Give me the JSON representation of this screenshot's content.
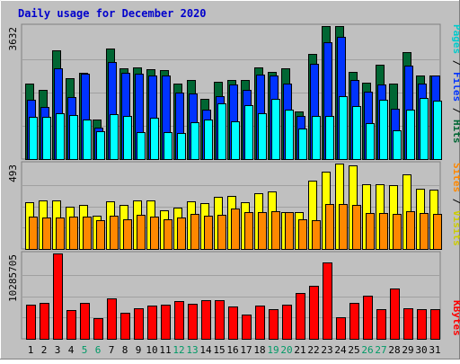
{
  "title": "Daily usage for December 2020",
  "colors": {
    "background": "#c0c0c0",
    "title": "#0000cc",
    "hits": "#006633",
    "files": "#0033ff",
    "pages": "#00ffff",
    "visits": "#ffff00",
    "sites": "#ff8800",
    "kbytes": "#ff0000",
    "weekend_day": "#009966",
    "weekday": "#000000"
  },
  "legends": {
    "top": [
      {
        "text": "Pages",
        "color": "#00cccc"
      },
      {
        "text": " / ",
        "color": "#000000"
      },
      {
        "text": "Files",
        "color": "#0033ff"
      },
      {
        "text": " / ",
        "color": "#000000"
      },
      {
        "text": "Hits",
        "color": "#006633"
      }
    ],
    "mid": [
      {
        "text": "Sites",
        "color": "#ff8800"
      },
      {
        "text": " / ",
        "color": "#000000"
      },
      {
        "text": "Visits",
        "color": "#cccc00"
      }
    ],
    "bottom": [
      {
        "text": "KBytes",
        "color": "#ff0000"
      }
    ]
  },
  "chart_data": [
    {
      "type": "bar",
      "name": "Hits / Files / Pages",
      "ymax_label": "3632",
      "ylim": [
        0,
        3632
      ],
      "x": [
        "1",
        "2",
        "3",
        "4",
        "5",
        "6",
        "7",
        "8",
        "9",
        "10",
        "11",
        "12",
        "13",
        "14",
        "15",
        "16",
        "17",
        "18",
        "19",
        "20",
        "21",
        "22",
        "23",
        "24",
        "25",
        "26",
        "27",
        "28",
        "29",
        "30",
        "31"
      ],
      "weekend_days": [
        "5",
        "6",
        "12",
        "13",
        "19",
        "20",
        "26",
        "27"
      ],
      "series": [
        {
          "name": "Hits",
          "values": [
            2050,
            1900,
            2970,
            2210,
            2350,
            1090,
            3020,
            2480,
            2510,
            2460,
            2420,
            2050,
            2150,
            1650,
            2110,
            2150,
            2170,
            2500,
            2370,
            2480,
            1310,
            2870,
            3630,
            3630,
            2380,
            2080,
            2570,
            2070,
            2930,
            2290,
            2280
          ]
        },
        {
          "name": "Files",
          "values": [
            1620,
            1420,
            2470,
            1700,
            2320,
            850,
            2660,
            2350,
            2340,
            2270,
            2280,
            1810,
            1800,
            1360,
            1710,
            2030,
            1900,
            2310,
            2270,
            2070,
            1180,
            2610,
            3190,
            3330,
            2160,
            1850,
            2030,
            1370,
            2540,
            2050,
            2270
          ]
        },
        {
          "name": "Pages",
          "values": [
            1150,
            1160,
            1240,
            1200,
            1070,
            750,
            1230,
            1170,
            740,
            1140,
            740,
            710,
            1010,
            1070,
            1530,
            1040,
            1480,
            1260,
            1640,
            1360,
            840,
            1190,
            1190,
            1720,
            1460,
            980,
            1610,
            780,
            1360,
            1660,
            1600
          ]
        }
      ]
    },
    {
      "type": "bar",
      "name": "Visits / Sites",
      "ymax_label": "493",
      "ylim": [
        0,
        493
      ],
      "x": [
        "1",
        "2",
        "3",
        "4",
        "5",
        "6",
        "7",
        "8",
        "9",
        "10",
        "11",
        "12",
        "13",
        "14",
        "15",
        "16",
        "17",
        "18",
        "19",
        "20",
        "21",
        "22",
        "23",
        "24",
        "25",
        "26",
        "27",
        "28",
        "29",
        "30",
        "31"
      ],
      "series": [
        {
          "name": "Visits",
          "values": [
            270,
            280,
            280,
            245,
            255,
            190,
            275,
            255,
            280,
            280,
            225,
            240,
            275,
            265,
            300,
            305,
            270,
            320,
            330,
            215,
            215,
            395,
            445,
            493,
            485,
            375,
            375,
            370,
            430,
            350,
            345
          ]
        },
        {
          "name": "Sites",
          "values": [
            185,
            180,
            180,
            185,
            185,
            165,
            190,
            170,
            195,
            185,
            170,
            180,
            200,
            190,
            195,
            235,
            215,
            215,
            220,
            215,
            170,
            165,
            260,
            260,
            252,
            210,
            205,
            200,
            220,
            205,
            200
          ]
        }
      ]
    },
    {
      "type": "bar",
      "name": "KBytes",
      "ymax_label": "10285705",
      "ylim": [
        0,
        10285705
      ],
      "x": [
        "1",
        "2",
        "3",
        "4",
        "5",
        "6",
        "7",
        "8",
        "9",
        "10",
        "11",
        "12",
        "13",
        "14",
        "15",
        "16",
        "17",
        "18",
        "19",
        "20",
        "21",
        "22",
        "23",
        "24",
        "25",
        "26",
        "27",
        "28",
        "29",
        "30",
        "31"
      ],
      "series": [
        {
          "name": "KBytes",
          "values": [
            4150000,
            4350000,
            10285705,
            3450000,
            4300000,
            2500000,
            4850000,
            3150000,
            3700000,
            4000000,
            4150000,
            4500000,
            4250000,
            4650000,
            4650000,
            3900000,
            2950000,
            4000000,
            3550000,
            4100000,
            5550000,
            6400000,
            9250000,
            2650000,
            4300000,
            5250000,
            3600000,
            6100000,
            3650000,
            3550000,
            3600000
          ]
        }
      ]
    }
  ]
}
